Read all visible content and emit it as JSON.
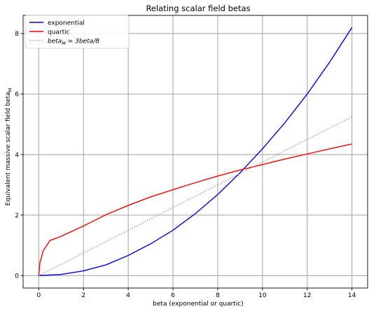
{
  "chart_data": {
    "type": "line",
    "title": "Relating scalar field betas",
    "xlabel": "beta (exponential or quartic)",
    "ylabel": "Equivalent massive scalar field beta",
    "ylabel_subscript": "M",
    "xlim": [
      -0.7,
      14.7
    ],
    "ylim": [
      -0.41,
      8.6
    ],
    "xticks": [
      0,
      2,
      4,
      6,
      8,
      10,
      12,
      14
    ],
    "yticks": [
      0,
      2,
      4,
      6,
      8
    ],
    "grid": true,
    "legend_position": "upper-left",
    "series": [
      {
        "name": "exponential",
        "color": "#0000ff",
        "style": "solid",
        "x": [
          0,
          1,
          2,
          3,
          4,
          5,
          6,
          7,
          8,
          9,
          10,
          11,
          12,
          13,
          14
        ],
        "y": [
          0,
          0.039,
          0.157,
          0.354,
          0.667,
          1.05,
          1.5,
          2.05,
          2.68,
          3.4,
          4.19,
          5.05,
          6.0,
          7.05,
          8.2
        ]
      },
      {
        "name": "quartic",
        "color": "#ff0000",
        "style": "solid",
        "x": [
          0,
          0.05,
          0.2,
          0.5,
          1,
          2,
          3,
          4,
          5,
          6,
          7,
          8,
          9,
          10,
          11,
          12,
          13,
          14
        ],
        "y": [
          0,
          0.42,
          0.82,
          1.16,
          1.3,
          1.64,
          2.01,
          2.32,
          2.6,
          2.84,
          3.07,
          3.29,
          3.49,
          3.67,
          3.85,
          4.02,
          4.19,
          4.35
        ]
      },
      {
        "name": "beta_M = 3beta/8",
        "legend_main": "beta",
        "legend_sub": "M",
        "legend_rest": " = 3beta/8",
        "color": "#808080",
        "style": "dotted",
        "x": [
          0,
          14
        ],
        "y": [
          0,
          5.25
        ]
      }
    ]
  }
}
